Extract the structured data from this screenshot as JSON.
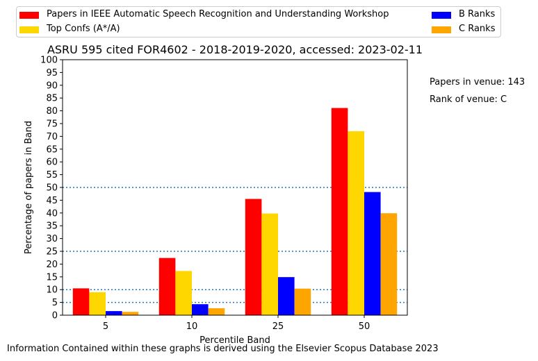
{
  "chart_data": {
    "type": "bar",
    "title": "ASRU 595 cited FOR4602 - 2018-2019-2020, accessed: 2023-02-11",
    "xlabel": "Percentile Band",
    "ylabel": "Percentage of papers in Band",
    "categories": [
      "5",
      "10",
      "25",
      "50"
    ],
    "ylim": [
      0,
      100
    ],
    "yticks": [
      0,
      5,
      10,
      15,
      20,
      25,
      30,
      35,
      40,
      45,
      50,
      55,
      60,
      65,
      70,
      75,
      80,
      85,
      90,
      95,
      100
    ],
    "reference_lines": [
      5,
      10,
      25,
      50
    ],
    "legend_position": "top",
    "series": [
      {
        "name": "Papers in IEEE Automatic Speech Recognition and Understanding Workshop",
        "color": "#ff0000",
        "values": [
          10.5,
          22.4,
          45.5,
          81.1
        ]
      },
      {
        "name": "Top Confs (A*/A)",
        "color": "#ffd700",
        "values": [
          9.0,
          17.3,
          39.8,
          72.0
        ]
      },
      {
        "name": "B Ranks",
        "color": "#0000ff",
        "values": [
          1.6,
          4.3,
          14.9,
          48.2
        ]
      },
      {
        "name": "C Ranks",
        "color": "#ffa500",
        "values": [
          1.3,
          2.7,
          10.4,
          39.9
        ]
      }
    ]
  },
  "side_notes": {
    "papers_in_venue": "Papers in venue: 143",
    "rank_of_venue": "Rank of venue: C"
  },
  "footer": "Information Contained within these graphs is derived using the Elsevier Scopus Database 2023"
}
